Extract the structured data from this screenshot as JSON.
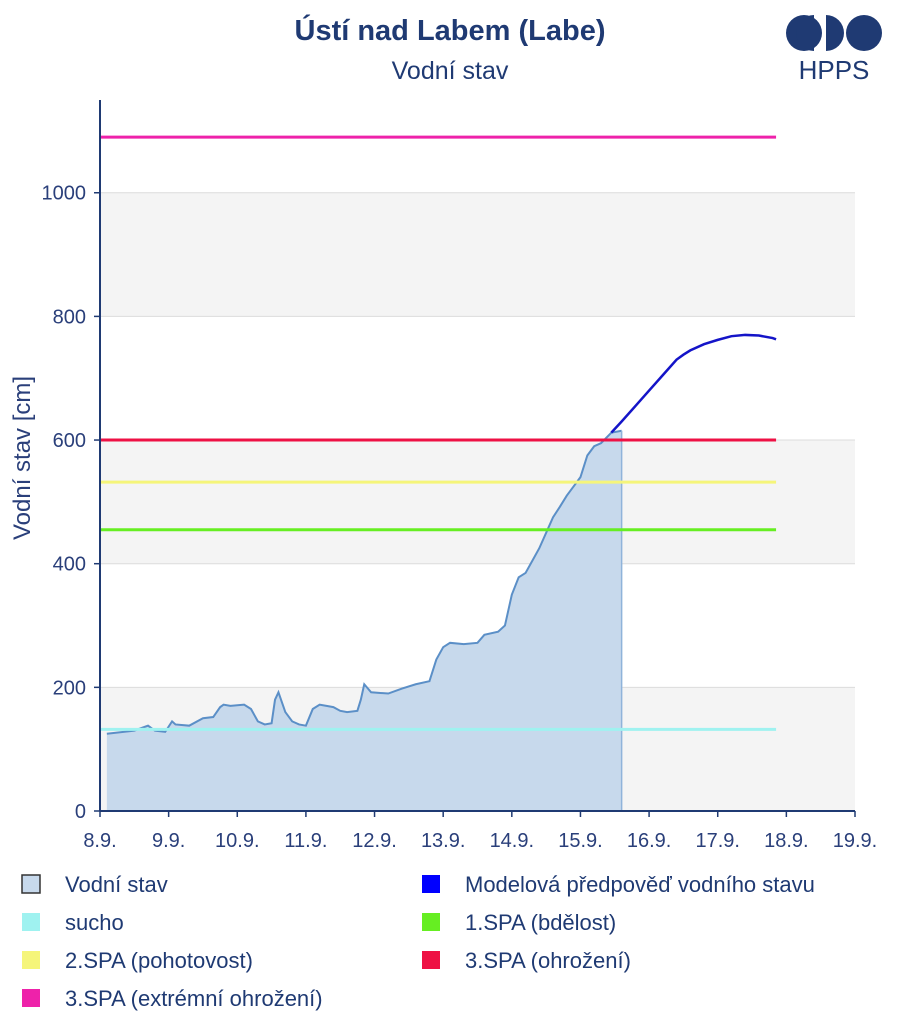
{
  "chart_data": {
    "type": "line",
    "title": "Ústí nad Labem (Labe)",
    "subtitle": "Vodní stav",
    "ylabel": "Vodní stav [cm]",
    "xlabel": "",
    "ylim": [
      0,
      1150
    ],
    "xlim": [
      8.0,
      19.0
    ],
    "y_ticks": [
      0,
      200,
      400,
      600,
      800,
      1000
    ],
    "x_ticks": [
      {
        "pos": 8,
        "label": "8.9."
      },
      {
        "pos": 9,
        "label": "9.9."
      },
      {
        "pos": 10,
        "label": "10.9."
      },
      {
        "pos": 11,
        "label": "11.9."
      },
      {
        "pos": 12,
        "label": "12.9."
      },
      {
        "pos": 13,
        "label": "13.9."
      },
      {
        "pos": 14,
        "label": "14.9."
      },
      {
        "pos": 15,
        "label": "15.9."
      },
      {
        "pos": 16,
        "label": "16.9."
      },
      {
        "pos": 17,
        "label": "17.9."
      },
      {
        "pos": 18,
        "label": "18.9."
      },
      {
        "pos": 19,
        "label": "19.9."
      }
    ],
    "grid": true,
    "legend_position": "bottom",
    "observed": {
      "name": "Vodní stav",
      "color": "#5b8fc7",
      "fill": "#c7d9ec",
      "points": [
        [
          8.1,
          125
        ],
        [
          8.5,
          130
        ],
        [
          8.7,
          138
        ],
        [
          8.8,
          130
        ],
        [
          8.95,
          128
        ],
        [
          9.05,
          145
        ],
        [
          9.1,
          140
        ],
        [
          9.3,
          138
        ],
        [
          9.5,
          150
        ],
        [
          9.65,
          152
        ],
        [
          9.75,
          168
        ],
        [
          9.8,
          172
        ],
        [
          9.9,
          170
        ],
        [
          10.1,
          172
        ],
        [
          10.2,
          165
        ],
        [
          10.3,
          145
        ],
        [
          10.4,
          140
        ],
        [
          10.5,
          142
        ],
        [
          10.55,
          180
        ],
        [
          10.6,
          192
        ],
        [
          10.7,
          160
        ],
        [
          10.8,
          145
        ],
        [
          10.9,
          140
        ],
        [
          11.0,
          138
        ],
        [
          11.1,
          165
        ],
        [
          11.2,
          172
        ],
        [
          11.3,
          170
        ],
        [
          11.4,
          168
        ],
        [
          11.5,
          162
        ],
        [
          11.6,
          160
        ],
        [
          11.75,
          162
        ],
        [
          11.8,
          180
        ],
        [
          11.85,
          205
        ],
        [
          11.95,
          192
        ],
        [
          12.2,
          190
        ],
        [
          12.4,
          198
        ],
        [
          12.6,
          205
        ],
        [
          12.8,
          210
        ],
        [
          12.9,
          245
        ],
        [
          13.0,
          265
        ],
        [
          13.1,
          272
        ],
        [
          13.3,
          270
        ],
        [
          13.5,
          272
        ],
        [
          13.6,
          285
        ],
        [
          13.8,
          290
        ],
        [
          13.9,
          300
        ],
        [
          14.0,
          350
        ],
        [
          14.1,
          378
        ],
        [
          14.2,
          385
        ],
        [
          14.3,
          405
        ],
        [
          14.4,
          425
        ],
        [
          14.5,
          450
        ],
        [
          14.6,
          475
        ],
        [
          14.7,
          492
        ],
        [
          14.8,
          510
        ],
        [
          14.9,
          525
        ],
        [
          15.0,
          540
        ],
        [
          15.1,
          575
        ],
        [
          15.2,
          590
        ],
        [
          15.3,
          595
        ],
        [
          15.45,
          612
        ],
        [
          15.6,
          615
        ]
      ]
    },
    "forecast": {
      "name": "Modelová předpověď vodního stavu",
      "color": "#1414c8",
      "points": [
        [
          15.45,
          612
        ],
        [
          15.6,
          630
        ],
        [
          15.8,
          655
        ],
        [
          16.0,
          680
        ],
        [
          16.2,
          705
        ],
        [
          16.4,
          730
        ],
        [
          16.5,
          738
        ],
        [
          16.6,
          745
        ],
        [
          16.8,
          755
        ],
        [
          17.0,
          762
        ],
        [
          17.2,
          768
        ],
        [
          17.4,
          770
        ],
        [
          17.6,
          769
        ],
        [
          17.8,
          765
        ],
        [
          17.85,
          763
        ]
      ]
    },
    "thresholds": [
      {
        "name": "sucho",
        "value": 132,
        "color": "#9ff2f0"
      },
      {
        "name": "1.SPA (bdělost)",
        "value": 455,
        "color": "#66ee22"
      },
      {
        "name": "2.SPA (pohotovost)",
        "value": 532,
        "color": "#f5f57a"
      },
      {
        "name": "3.SPA (ohrožení)",
        "value": 600,
        "color": "#ee1144"
      },
      {
        "name": "3.SPA (extrémní ohrožení)",
        "value": 1090,
        "color": "#ee22aa"
      }
    ],
    "threshold_x_range": [
      8.0,
      17.85
    ]
  },
  "logo": {
    "text": "HPPS",
    "color": "#1f3a73"
  },
  "legend": {
    "items": [
      {
        "label": "Vodní stav",
        "color": "#c7d9ec",
        "border": "#333333",
        "col": 0,
        "row": 0
      },
      {
        "label": "Modelová předpověď vodního stavu",
        "color": "#0000ff",
        "border": "#0000ff",
        "col": 1,
        "row": 0
      },
      {
        "label": "sucho",
        "color": "#9ff2f0",
        "border": "#9ff2f0",
        "col": 0,
        "row": 1
      },
      {
        "label": "1.SPA (bdělost)",
        "color": "#66ee22",
        "border": "#66ee22",
        "col": 1,
        "row": 1
      },
      {
        "label": "2.SPA (pohotovost)",
        "color": "#f5f57a",
        "border": "#f5f57a",
        "col": 0,
        "row": 2
      },
      {
        "label": "3.SPA (ohrožení)",
        "color": "#ee1144",
        "border": "#ee1144",
        "col": 1,
        "row": 2
      },
      {
        "label": "3.SPA (extrémní ohrožení)",
        "color": "#ee22aa",
        "border": "#ee22aa",
        "col": 0,
        "row": 3
      }
    ]
  }
}
